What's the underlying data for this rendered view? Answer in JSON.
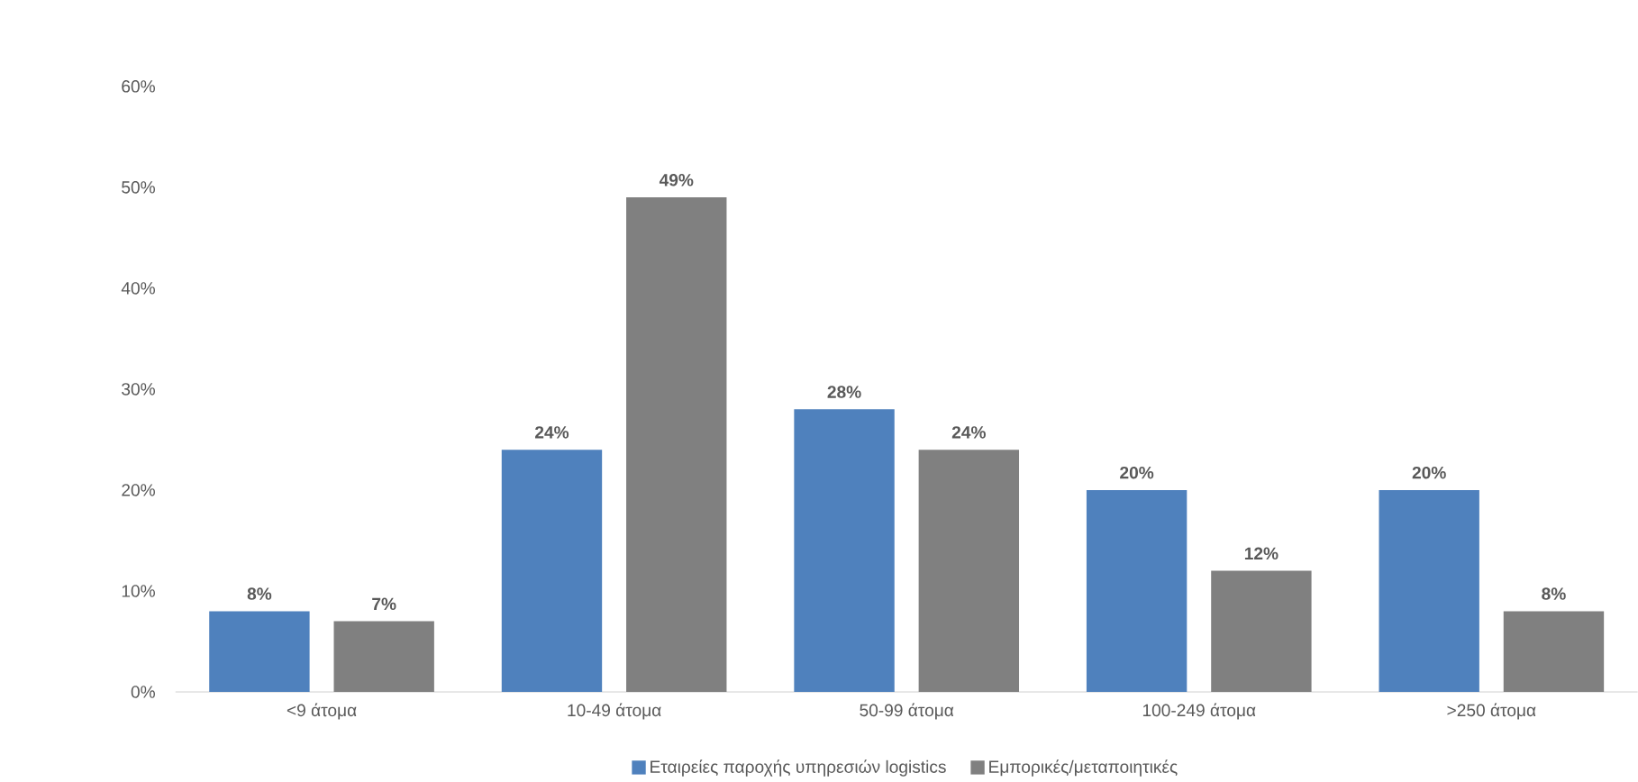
{
  "chart_data": {
    "type": "bar",
    "categories": [
      "<9 άτομα",
      "10-49 άτομα",
      "50-99 άτομα",
      "100-249 άτομα",
      ">250 άτομα"
    ],
    "series": [
      {
        "name": "Εταιρείες παροχής υπηρεσιών logistics",
        "color": "#4f81bd",
        "values": [
          8,
          24,
          28,
          20,
          20
        ],
        "value_labels": [
          "8%",
          "24%",
          "28%",
          "20%",
          "20%"
        ]
      },
      {
        "name": "Εμπορικές/μεταποιητικές",
        "color": "#808080",
        "values": [
          7,
          49,
          24,
          12,
          8
        ],
        "value_labels": [
          "7%",
          "49%",
          "24%",
          "12%",
          "8%"
        ]
      }
    ],
    "ylim": [
      0,
      60
    ],
    "yticks": [
      {
        "value": 0,
        "label": "0%"
      },
      {
        "value": 10,
        "label": "10%"
      },
      {
        "value": 20,
        "label": "20%"
      },
      {
        "value": 30,
        "label": "30%"
      },
      {
        "value": 40,
        "label": "40%"
      },
      {
        "value": 50,
        "label": "50%"
      },
      {
        "value": 60,
        "label": "60%"
      }
    ],
    "legend": "bottom",
    "grid": false
  }
}
